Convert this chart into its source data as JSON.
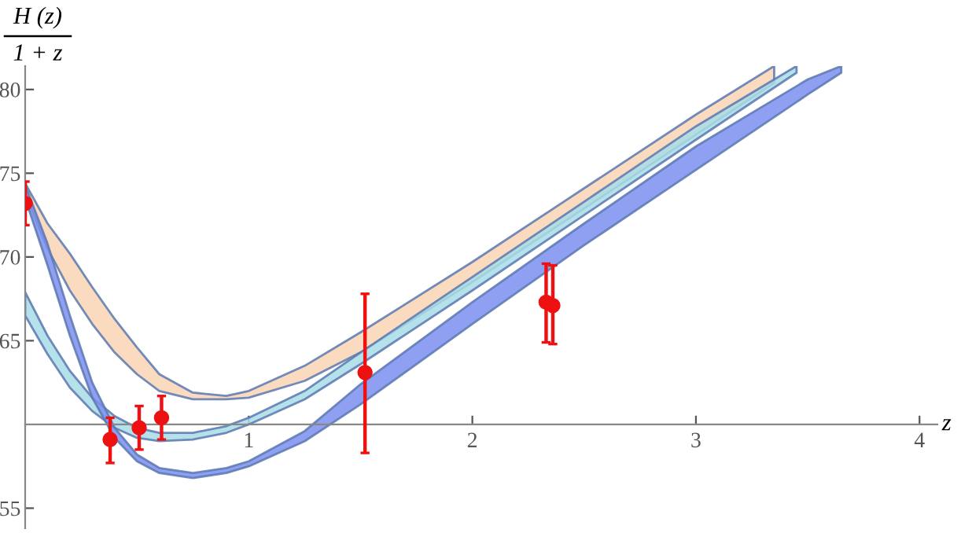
{
  "chart_data": {
    "type": "line",
    "xlabel": "z",
    "ylabel": "H (z)\n1 + z",
    "xlim": [
      0,
      4.08
    ],
    "ylim": [
      53.8,
      81.4
    ],
    "xticks": [
      1,
      2,
      3,
      4
    ],
    "yticks": [
      55,
      65,
      70,
      75,
      80
    ],
    "series": [
      {
        "color": "#f9d5b5",
        "x": [
          0,
          0.1,
          0.2,
          0.3,
          0.4,
          0.5,
          0.6,
          0.75,
          0.9,
          1.0,
          1.25,
          1.5,
          2.0,
          2.5,
          3.0,
          3.35
        ],
        "values": [
          null,
          null,
          null,
          null,
          null,
          null,
          null,
          null,
          null,
          null,
          null,
          null,
          null,
          null,
          null,
          null
        ],
        "upper": [
          74.4,
          72.0,
          70.2,
          68.2,
          66.3,
          64.6,
          63.0,
          61.9,
          61.7,
          62.0,
          63.5,
          65.5,
          69.7,
          74.1,
          78.5,
          81.4
        ],
        "lower": [
          73.8,
          70.5,
          68.0,
          66.0,
          64.3,
          63.0,
          62.0,
          61.5,
          61.5,
          61.6,
          62.6,
          64.3,
          68.5,
          72.9,
          77.3,
          80.4
        ]
      },
      {
        "color": "#a8dde6",
        "x": [
          0,
          0.1,
          0.2,
          0.3,
          0.4,
          0.5,
          0.6,
          0.75,
          0.9,
          1.0,
          1.25,
          1.5,
          2.0,
          2.5,
          3.0,
          3.45
        ],
        "values": [
          null,
          null,
          null,
          null,
          null,
          null,
          null,
          null,
          null,
          null,
          null,
          null,
          null,
          null,
          null,
          null
        ],
        "upper": [
          67.9,
          65.3,
          63.2,
          61.6,
          60.5,
          59.8,
          59.5,
          59.5,
          59.9,
          60.4,
          62.0,
          64.3,
          68.8,
          73.3,
          77.8,
          81.4
        ],
        "lower": [
          66.5,
          64.2,
          62.2,
          60.8,
          59.8,
          59.2,
          59.0,
          59.1,
          59.5,
          60.0,
          61.5,
          63.6,
          68.0,
          72.5,
          77.0,
          81.0
        ]
      },
      {
        "color": "#7b8ff0",
        "x": [
          0,
          0.1,
          0.2,
          0.3,
          0.4,
          0.5,
          0.6,
          0.75,
          0.9,
          1.0,
          1.25,
          1.5,
          2.0,
          2.5,
          3.0,
          3.5,
          3.65
        ],
        "values": [
          null,
          null,
          null,
          null,
          null,
          null,
          null,
          null,
          null,
          null,
          null,
          null,
          null,
          null,
          null,
          null,
          null
        ],
        "upper": [
          74.3,
          70.8,
          66.5,
          62.5,
          59.8,
          58.2,
          57.4,
          57.1,
          57.4,
          57.8,
          59.6,
          62.4,
          67.3,
          72.0,
          76.6,
          80.6,
          81.4
        ],
        "lower": [
          73.5,
          69.5,
          65.3,
          61.6,
          59.2,
          57.8,
          57.1,
          56.8,
          57.1,
          57.5,
          59.0,
          61.2,
          66.0,
          70.7,
          75.2,
          79.7,
          81.0
        ]
      },
      {
        "type": "scatter",
        "color": "#ee1111",
        "marker": "circle",
        "x": [
          0,
          0.38,
          0.51,
          0.61,
          1.52,
          2.33,
          2.36
        ],
        "values": [
          73.2,
          59.1,
          59.8,
          60.4,
          63.1,
          67.3,
          67.1
        ],
        "errors": [
          [
            71.9,
            74.5
          ],
          [
            57.7,
            60.4
          ],
          [
            58.5,
            61.1
          ],
          [
            59.1,
            61.7
          ],
          [
            58.3,
            67.8
          ],
          [
            64.9,
            69.6
          ],
          [
            64.8,
            69.5
          ]
        ]
      }
    ]
  }
}
